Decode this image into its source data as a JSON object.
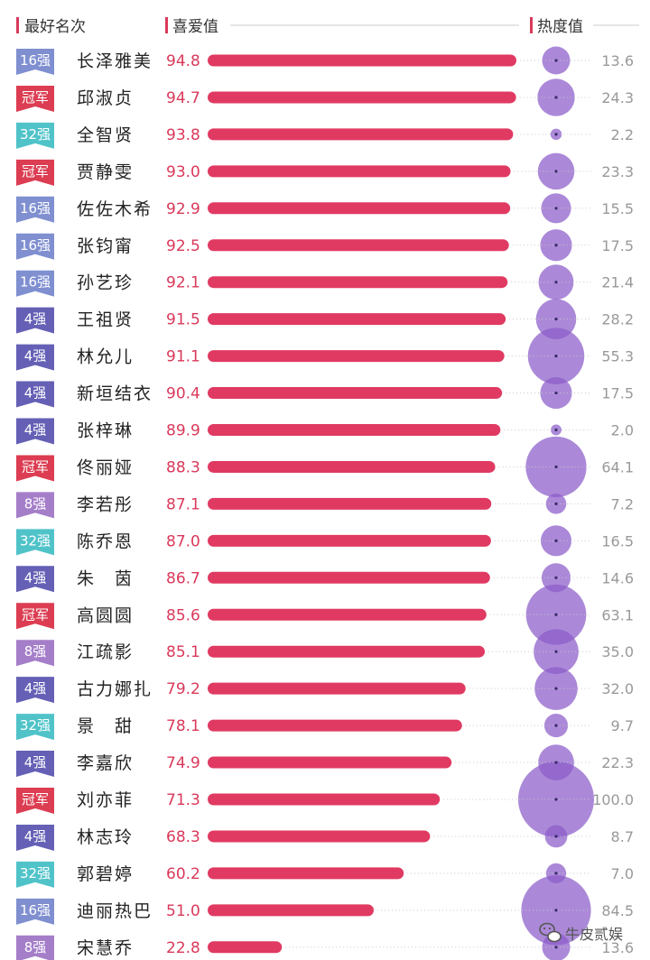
{
  "header": {
    "rank_label": "最好名次",
    "like_label": "喜爱值",
    "heat_label": "热度值"
  },
  "colors": {
    "bar": "#e03a62",
    "like_text": "#d9395a",
    "bubble": "#8a5cc9",
    "rank": {
      "16强": "#7f8fd0",
      "冠军": "#dc3d52",
      "32强": "#50c3c9",
      "4强": "#6560b5",
      "8强": "#a57ec9"
    }
  },
  "watermark": {
    "icon": "wechat-icon",
    "text": "牛皮贰娱"
  },
  "chart_data": {
    "type": "bar",
    "title": "",
    "xlim": [
      0,
      100
    ],
    "series": [
      {
        "name": "喜爱值",
        "values": [
          94.8,
          94.7,
          93.8,
          93.0,
          92.9,
          92.5,
          92.1,
          91.5,
          91.1,
          90.4,
          89.9,
          88.3,
          87.1,
          87.0,
          86.7,
          85.6,
          85.1,
          79.2,
          78.1,
          74.9,
          71.3,
          68.3,
          60.2,
          51.0,
          22.8
        ]
      },
      {
        "name": "热度值",
        "values": [
          13.6,
          24.3,
          2.2,
          23.3,
          15.5,
          17.5,
          21.4,
          28.2,
          55.3,
          17.5,
          2.0,
          64.1,
          7.2,
          16.5,
          14.6,
          63.1,
          35.0,
          32.0,
          9.7,
          22.3,
          100.0,
          8.7,
          7.0,
          84.5,
          13.6
        ]
      }
    ],
    "rows": [
      {
        "rank": "16强",
        "name": "长泽雅美",
        "like": "94.8",
        "heat": "13.6"
      },
      {
        "rank": "冠军",
        "name": "邱淑贞",
        "like": "94.7",
        "heat": "24.3"
      },
      {
        "rank": "32强",
        "name": "全智贤",
        "like": "93.8",
        "heat": "2.2"
      },
      {
        "rank": "冠军",
        "name": "贾静雯",
        "like": "93.0",
        "heat": "23.3"
      },
      {
        "rank": "16强",
        "name": "佐佐木希",
        "like": "92.9",
        "heat": "15.5"
      },
      {
        "rank": "16强",
        "name": "张钧甯",
        "like": "92.5",
        "heat": "17.5"
      },
      {
        "rank": "16强",
        "name": "孙艺珍",
        "like": "92.1",
        "heat": "21.4"
      },
      {
        "rank": "4强",
        "name": "王祖贤",
        "like": "91.5",
        "heat": "28.2"
      },
      {
        "rank": "4强",
        "name": "林允儿",
        "like": "91.1",
        "heat": "55.3"
      },
      {
        "rank": "4强",
        "name": "新垣结衣",
        "like": "90.4",
        "heat": "17.5"
      },
      {
        "rank": "4强",
        "name": "张梓琳",
        "like": "89.9",
        "heat": "2.0"
      },
      {
        "rank": "冠军",
        "name": "佟丽娅",
        "like": "88.3",
        "heat": "64.1"
      },
      {
        "rank": "8强",
        "name": "李若彤",
        "like": "87.1",
        "heat": "7.2"
      },
      {
        "rank": "32强",
        "name": "陈乔恩",
        "like": "87.0",
        "heat": "16.5"
      },
      {
        "rank": "4强",
        "name": "朱　茵",
        "like": "86.7",
        "heat": "14.6"
      },
      {
        "rank": "冠军",
        "name": "高圆圆",
        "like": "85.6",
        "heat": "63.1"
      },
      {
        "rank": "8强",
        "name": "江疏影",
        "like": "85.1",
        "heat": "35.0"
      },
      {
        "rank": "4强",
        "name": "古力娜扎",
        "like": "79.2",
        "heat": "32.0"
      },
      {
        "rank": "32强",
        "name": "景　甜",
        "like": "78.1",
        "heat": "9.7"
      },
      {
        "rank": "4强",
        "name": "李嘉欣",
        "like": "74.9",
        "heat": "22.3"
      },
      {
        "rank": "冠军",
        "name": "刘亦菲",
        "like": "71.3",
        "heat": "100.0"
      },
      {
        "rank": "4强",
        "name": "林志玲",
        "like": "68.3",
        "heat": "8.7"
      },
      {
        "rank": "32强",
        "name": "郭碧婷",
        "like": "60.2",
        "heat": "7.0"
      },
      {
        "rank": "16强",
        "name": "迪丽热巴",
        "like": "51.0",
        "heat": "84.5"
      },
      {
        "rank": "8强",
        "name": "宋慧乔",
        "like": "22.8",
        "heat": "13.6"
      }
    ]
  }
}
